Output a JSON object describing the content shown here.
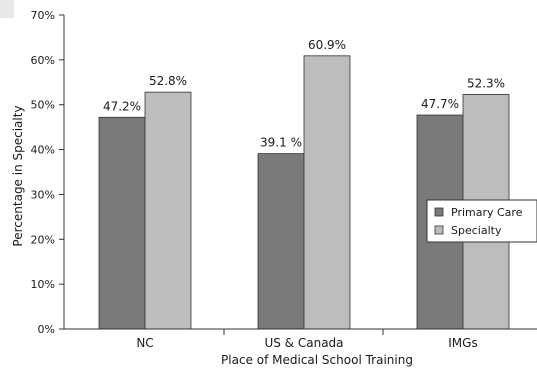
{
  "chart_data": {
    "type": "bar",
    "categories": [
      "NC",
      "US & Canada",
      "IMGs"
    ],
    "series": [
      {
        "name": "Primary Care",
        "values": [
          47.2,
          39.1,
          47.7
        ],
        "labels": [
          "47.2%",
          "39.1 %",
          "47.7%"
        ],
        "color": "#7a7a7c"
      },
      {
        "name": "Specialty",
        "values": [
          52.8,
          60.9,
          52.3
        ],
        "labels": [
          "52.8%",
          "60.9%",
          "52.3%"
        ],
        "color": "#bdbdbf"
      }
    ],
    "xlabel": "Place of Medical School Training",
    "ylabel": "Percentage in Specialty",
    "ylim": [
      0,
      70
    ],
    "yticks": [
      0,
      10,
      20,
      30,
      40,
      50,
      60,
      70
    ],
    "ytick_labels": [
      "0%",
      "10%",
      "20%",
      "30%",
      "40%",
      "50%",
      "60%",
      "70%"
    ],
    "grid": false,
    "legend_position": "right"
  }
}
